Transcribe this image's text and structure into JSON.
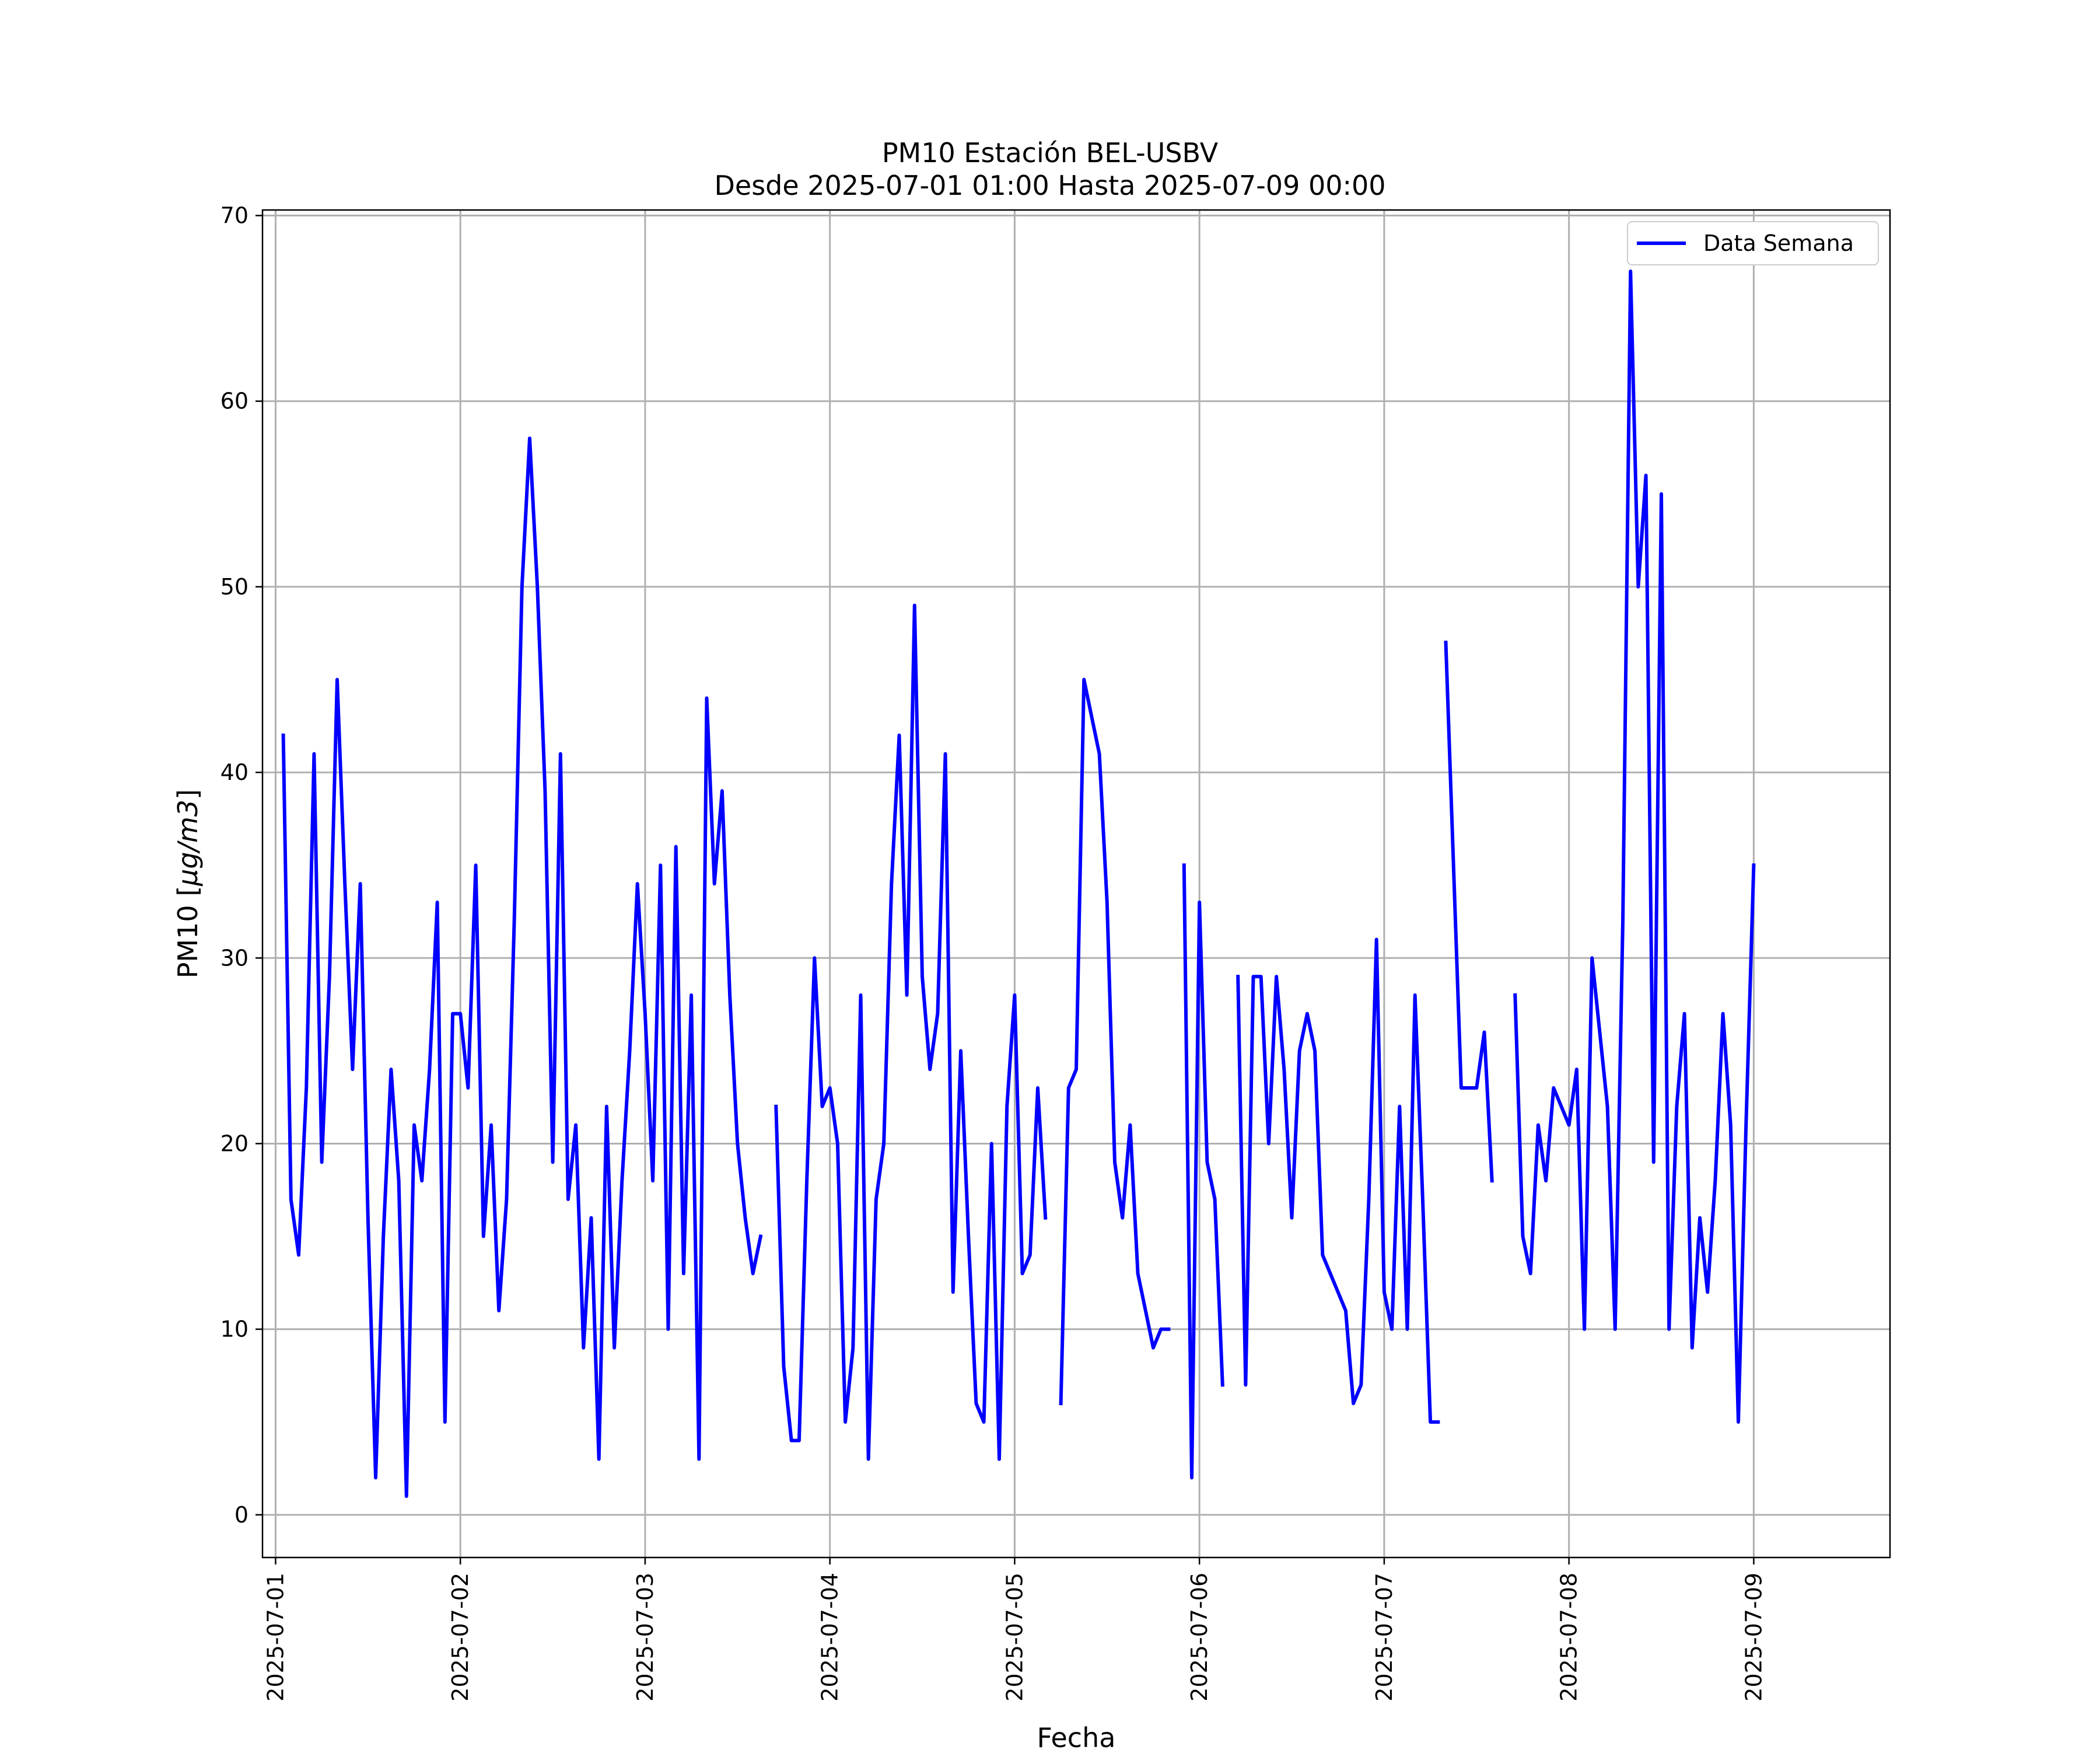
{
  "chart_data": {
    "type": "line",
    "title": "PM10 Estación BEL-USBV",
    "subtitle": "Desde 2025-07-01 01:00 Hasta 2025-07-09 00:00",
    "xlabel": "Fecha",
    "ylabel": "PM10 [μg/m3]",
    "ylabel_parts": {
      "prefix": "PM10 [",
      "unit": "μg/m3",
      "suffix": "]"
    },
    "xlim": [
      "2025-06-30 22:18",
      "2025-07-09 17:42"
    ],
    "ylim": [
      -2.3,
      70.3
    ],
    "x_ticks": [
      "2025-07-01",
      "2025-07-02",
      "2025-07-03",
      "2025-07-04",
      "2025-07-05",
      "2025-07-06",
      "2025-07-07",
      "2025-07-08",
      "2025-07-09"
    ],
    "y_ticks": [
      0,
      10,
      20,
      30,
      40,
      50,
      60,
      70
    ],
    "grid": true,
    "legend": {
      "position": "top-right"
    },
    "colors": {
      "series": "#0000ff",
      "grid": "#b0b0b0",
      "axes": "#000000"
    },
    "series": [
      {
        "name": "Data Semana",
        "segments": [
          {
            "x": [
              "2025-07-01 01:00",
              "2025-07-01 02:00",
              "2025-07-01 03:00",
              "2025-07-01 04:00",
              "2025-07-01 05:00",
              "2025-07-01 06:00",
              "2025-07-01 07:00",
              "2025-07-01 08:00",
              "2025-07-01 09:00",
              "2025-07-01 10:00",
              "2025-07-01 11:00",
              "2025-07-01 12:00",
              "2025-07-01 13:00",
              "2025-07-01 14:00",
              "2025-07-01 15:00",
              "2025-07-01 16:00",
              "2025-07-01 17:00",
              "2025-07-01 18:00",
              "2025-07-01 19:00",
              "2025-07-01 20:00",
              "2025-07-01 21:00",
              "2025-07-01 22:00",
              "2025-07-01 23:00",
              "2025-07-02 00:00",
              "2025-07-02 01:00",
              "2025-07-02 02:00",
              "2025-07-02 03:00",
              "2025-07-02 04:00",
              "2025-07-02 05:00",
              "2025-07-02 06:00",
              "2025-07-02 07:00",
              "2025-07-02 08:00",
              "2025-07-02 09:00",
              "2025-07-02 10:00",
              "2025-07-02 11:00",
              "2025-07-02 12:00",
              "2025-07-02 13:00",
              "2025-07-02 14:00",
              "2025-07-02 15:00",
              "2025-07-02 16:00",
              "2025-07-02 17:00",
              "2025-07-02 18:00",
              "2025-07-02 19:00",
              "2025-07-02 20:00",
              "2025-07-02 21:00",
              "2025-07-02 22:00",
              "2025-07-02 23:00",
              "2025-07-03 00:00",
              "2025-07-03 01:00",
              "2025-07-03 02:00",
              "2025-07-03 03:00",
              "2025-07-03 04:00",
              "2025-07-03 05:00",
              "2025-07-03 06:00",
              "2025-07-03 07:00",
              "2025-07-03 08:00",
              "2025-07-03 09:00",
              "2025-07-03 10:00",
              "2025-07-03 11:00",
              "2025-07-03 12:00",
              "2025-07-03 13:00",
              "2025-07-03 14:00",
              "2025-07-03 15:00"
            ],
            "y": [
              42,
              17,
              14,
              23,
              41,
              19,
              29,
              45,
              34,
              24,
              34,
              16,
              2,
              15,
              24,
              18,
              1,
              21,
              18,
              24,
              33,
              5,
              27,
              27,
              23,
              35,
              15,
              21,
              11,
              17,
              32,
              50,
              58,
              50,
              39,
              19,
              41,
              17,
              21,
              9,
              16,
              3,
              22,
              9,
              18,
              25,
              34,
              27,
              18,
              35,
              10,
              36,
              13,
              28,
              3,
              44,
              34,
              39,
              28,
              20,
              16,
              13,
              15
            ]
          },
          {
            "x": [
              "2025-07-03 17:00",
              "2025-07-03 18:00",
              "2025-07-03 19:00",
              "2025-07-03 20:00",
              "2025-07-03 21:00",
              "2025-07-03 22:00",
              "2025-07-03 23:00",
              "2025-07-04 00:00",
              "2025-07-04 01:00",
              "2025-07-04 02:00",
              "2025-07-04 03:00",
              "2025-07-04 04:00",
              "2025-07-04 05:00",
              "2025-07-04 06:00",
              "2025-07-04 07:00",
              "2025-07-04 08:00",
              "2025-07-04 09:00",
              "2025-07-04 10:00",
              "2025-07-04 11:00",
              "2025-07-04 12:00",
              "2025-07-04 13:00",
              "2025-07-04 14:00",
              "2025-07-04 15:00",
              "2025-07-04 16:00",
              "2025-07-04 17:00",
              "2025-07-04 18:00",
              "2025-07-04 19:00",
              "2025-07-04 20:00",
              "2025-07-04 21:00",
              "2025-07-04 22:00",
              "2025-07-04 23:00",
              "2025-07-05 00:00",
              "2025-07-05 01:00",
              "2025-07-05 02:00",
              "2025-07-05 03:00",
              "2025-07-05 04:00"
            ],
            "y": [
              22,
              8,
              4,
              4,
              18,
              30,
              22,
              23,
              20,
              5,
              9,
              28,
              3,
              17,
              20,
              34,
              42,
              28,
              49,
              29,
              24,
              27,
              41,
              12,
              25,
              15,
              6,
              5,
              20,
              3,
              22,
              28,
              13,
              14,
              23,
              16
            ]
          },
          {
            "x": [
              "2025-07-05 06:00",
              "2025-07-05 07:00",
              "2025-07-05 08:00",
              "2025-07-05 09:00",
              "2025-07-05 10:00",
              "2025-07-05 11:00",
              "2025-07-05 12:00",
              "2025-07-05 13:00",
              "2025-07-05 14:00",
              "2025-07-05 15:00",
              "2025-07-05 16:00",
              "2025-07-05 17:00",
              "2025-07-05 18:00",
              "2025-07-05 19:00",
              "2025-07-05 20:00"
            ],
            "y": [
              6,
              23,
              24,
              45,
              43,
              41,
              33,
              19,
              16,
              21,
              13,
              11,
              9,
              10,
              10
            ]
          },
          {
            "x": [
              "2025-07-05 22:00",
              "2025-07-05 23:00",
              "2025-07-06 00:00",
              "2025-07-06 01:00",
              "2025-07-06 02:00",
              "2025-07-06 03:00"
            ],
            "y": [
              35,
              2,
              33,
              19,
              17,
              7
            ]
          },
          {
            "x": [
              "2025-07-06 05:00",
              "2025-07-06 06:00",
              "2025-07-06 07:00",
              "2025-07-06 08:00",
              "2025-07-06 09:00",
              "2025-07-06 10:00",
              "2025-07-06 11:00",
              "2025-07-06 12:00",
              "2025-07-06 13:00",
              "2025-07-06 14:00",
              "2025-07-06 15:00",
              "2025-07-06 16:00",
              "2025-07-06 17:00",
              "2025-07-06 18:00",
              "2025-07-06 19:00",
              "2025-07-06 20:00",
              "2025-07-06 21:00",
              "2025-07-06 22:00",
              "2025-07-06 23:00",
              "2025-07-07 00:00",
              "2025-07-07 01:00",
              "2025-07-07 02:00",
              "2025-07-07 03:00",
              "2025-07-07 04:00",
              "2025-07-07 05:00",
              "2025-07-07 06:00",
              "2025-07-07 07:00"
            ],
            "y": [
              29,
              7,
              29,
              29,
              20,
              29,
              24,
              16,
              25,
              27,
              25,
              14,
              13,
              12,
              11,
              6,
              7,
              17,
              31,
              12,
              10,
              22,
              10,
              28,
              17,
              5,
              5
            ]
          },
          {
            "x": [
              "2025-07-07 08:00",
              "2025-07-07 09:00",
              "2025-07-07 10:00",
              "2025-07-07 11:00",
              "2025-07-07 12:00",
              "2025-07-07 13:00",
              "2025-07-07 14:00"
            ],
            "y": [
              47,
              35,
              23,
              23,
              23,
              26,
              18
            ]
          },
          {
            "x": [
              "2025-07-07 17:00",
              "2025-07-07 18:00",
              "2025-07-07 19:00",
              "2025-07-07 20:00",
              "2025-07-07 21:00",
              "2025-07-07 22:00",
              "2025-07-07 23:00",
              "2025-07-08 00:00",
              "2025-07-08 01:00",
              "2025-07-08 02:00",
              "2025-07-08 03:00",
              "2025-07-08 04:00",
              "2025-07-08 05:00",
              "2025-07-08 06:00",
              "2025-07-08 07:00",
              "2025-07-08 08:00",
              "2025-07-08 09:00",
              "2025-07-08 10:00",
              "2025-07-08 11:00",
              "2025-07-08 12:00",
              "2025-07-08 13:00",
              "2025-07-08 14:00",
              "2025-07-08 15:00",
              "2025-07-08 16:00",
              "2025-07-08 17:00",
              "2025-07-08 18:00",
              "2025-07-08 19:00",
              "2025-07-08 20:00",
              "2025-07-08 21:00",
              "2025-07-08 22:00",
              "2025-07-08 23:00",
              "2025-07-09 00:00"
            ],
            "y": [
              28,
              15,
              13,
              21,
              18,
              23,
              22,
              21,
              24,
              10,
              30,
              26,
              22,
              10,
              32,
              67,
              50,
              56,
              19,
              55,
              10,
              22,
              27,
              9,
              16,
              12,
              18,
              27,
              21,
              5,
              21,
              35
            ]
          }
        ]
      }
    ]
  }
}
